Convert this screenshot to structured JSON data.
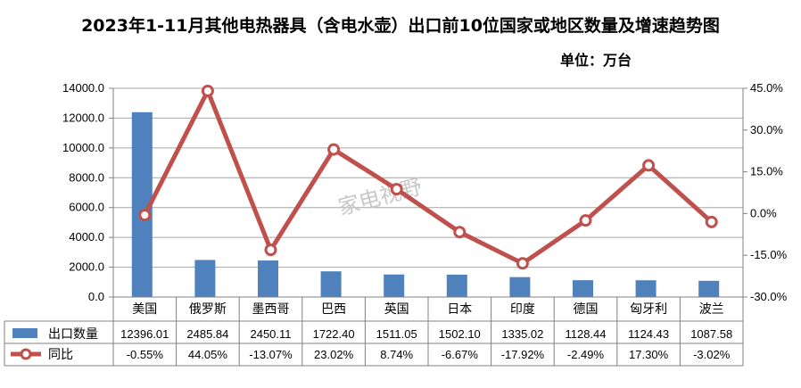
{
  "title": "2023年1-11月其他电热器具（含电水壶）出口前10位国家或地区数量及增速趋势图",
  "unit_label": "单位：万台",
  "watermark": "家电视野",
  "colors": {
    "bar": "#4f81bd",
    "line": "#c0504d",
    "grid": "#a6a6a6",
    "axis": "#808080"
  },
  "chart_data": {
    "type": "bar",
    "categories": [
      "美国",
      "俄罗斯",
      "墨西哥",
      "巴西",
      "英国",
      "日本",
      "印度",
      "德国",
      "匈牙利",
      "波兰"
    ],
    "series": [
      {
        "name": "出口数量",
        "type": "bar",
        "axis": "left",
        "values": [
          12396.01,
          2485.84,
          2450.11,
          1722.4,
          1511.05,
          1502.1,
          1335.02,
          1128.44,
          1124.43,
          1087.58
        ],
        "display": [
          "12396.01",
          "2485.84",
          "2450.11",
          "1722.40",
          "1511.05",
          "1502.10",
          "1335.02",
          "1128.44",
          "1124.43",
          "1087.58"
        ]
      },
      {
        "name": "同比",
        "type": "line",
        "axis": "right",
        "values": [
          -0.55,
          44.05,
          -13.07,
          23.02,
          8.74,
          -6.67,
          -17.92,
          -2.49,
          17.3,
          -3.02
        ],
        "display": [
          "-0.55%",
          "44.05%",
          "-13.07%",
          "23.02%",
          "8.74%",
          "-6.67%",
          "-17.92%",
          "-2.49%",
          "17.30%",
          "-3.02%"
        ]
      }
    ],
    "y_left": {
      "min": 0,
      "max": 14000,
      "step": 2000,
      "ticks": [
        "0.0",
        "2000.0",
        "4000.0",
        "6000.0",
        "8000.0",
        "10000.0",
        "12000.0",
        "14000.0"
      ]
    },
    "y_right": {
      "min": -30,
      "max": 45,
      "step": 15,
      "ticks": [
        "-30.0%",
        "-15.0%",
        "0.0%",
        "15.0%",
        "30.0%",
        "45.0%"
      ]
    },
    "grid": true,
    "legend": "data-table"
  }
}
